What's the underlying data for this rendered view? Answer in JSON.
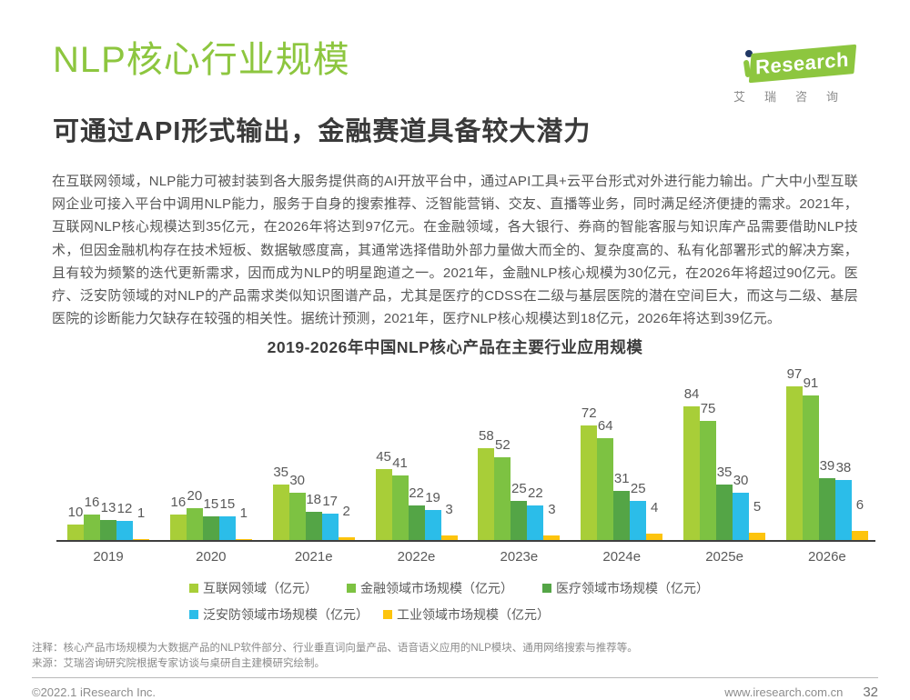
{
  "header": {
    "title": "NLP核心行业规模",
    "subtitle": "可通过API形式输出，金融赛道具备较大潜力",
    "logo": {
      "text": "Research",
      "caption": "艾瑞咨询"
    }
  },
  "body": {
    "paragraph": "在互联网领域，NLP能力可被封装到各大服务提供商的AI开放平台中，通过API工具+云平台形式对外进行能力输出。广大中小型互联网企业可接入平台中调用NLP能力，服务于自身的搜索推荐、泛智能营销、交友、直播等业务，同时满足经济便捷的需求。2021年，互联网NLP核心规模达到35亿元，在2026年将达到97亿元。在金融领域，各大银行、券商的智能客服与知识库产品需要借助NLP技术，但因金融机构存在技术短板、数据敏感度高，其通常选择借助外部力量做大而全的、复杂度高的、私有化部署形式的解决方案，且有较为频繁的迭代更新需求，因而成为NLP的明星跑道之一。2021年，金融NLP核心规模为30亿元，在2026年将超过90亿元。医疗、泛安防领域的对NLP的产品需求类似知识图谱产品，尤其是医疗的CDSS在二级与基层医院的潜在空间巨大，而这与二级、基层医院的诊断能力欠缺存在较强的相关性。据统计预测，2021年，医疗NLP核心规模达到18亿元，2026年将达到39亿元。"
  },
  "chart_data": {
    "type": "bar",
    "title": "2019-2026年中国NLP核心产品在主要行业应用规模",
    "categories": [
      "2019",
      "2020",
      "2021e",
      "2022e",
      "2023e",
      "2024e",
      "2025e",
      "2026e"
    ],
    "series": [
      {
        "name": "互联网领域（亿元）",
        "color": "#a8ce38",
        "values": [
          10,
          16,
          35,
          45,
          58,
          72,
          84,
          97
        ]
      },
      {
        "name": "金融领域市场规模（亿元）",
        "color": "#7dc242",
        "values": [
          16,
          20,
          30,
          41,
          52,
          64,
          75,
          91
        ]
      },
      {
        "name": "医疗领域市场规模（亿元）",
        "color": "#54a546",
        "values": [
          13,
          15,
          18,
          22,
          25,
          31,
          35,
          39
        ]
      },
      {
        "name": "泛安防领域市场规模（亿元）",
        "color": "#2bbde9",
        "values": [
          12,
          15,
          17,
          19,
          22,
          25,
          30,
          38
        ]
      },
      {
        "name": "工业领域市场规模（亿元）",
        "color": "#fdc40d",
        "values": [
          1,
          1,
          2,
          3,
          3,
          4,
          5,
          6
        ]
      }
    ],
    "ylim": [
      0,
      100
    ],
    "grid": false,
    "legend_position": "bottom",
    "legend_rows": [
      3,
      2
    ]
  },
  "notes": {
    "note": "注释：核心产品市场规模为大数据产品的NLP软件部分、行业垂直词向量产品、语音语义应用的NLP模块、通用网络搜索与推荐等。",
    "source": "来源：艾瑞咨询研究院根据专家访谈与桌研自主建模研究绘制。"
  },
  "footer": {
    "copyright": "©2022.1 iResearch Inc.",
    "website": "www.iresearch.com.cn",
    "page_number": "32"
  }
}
